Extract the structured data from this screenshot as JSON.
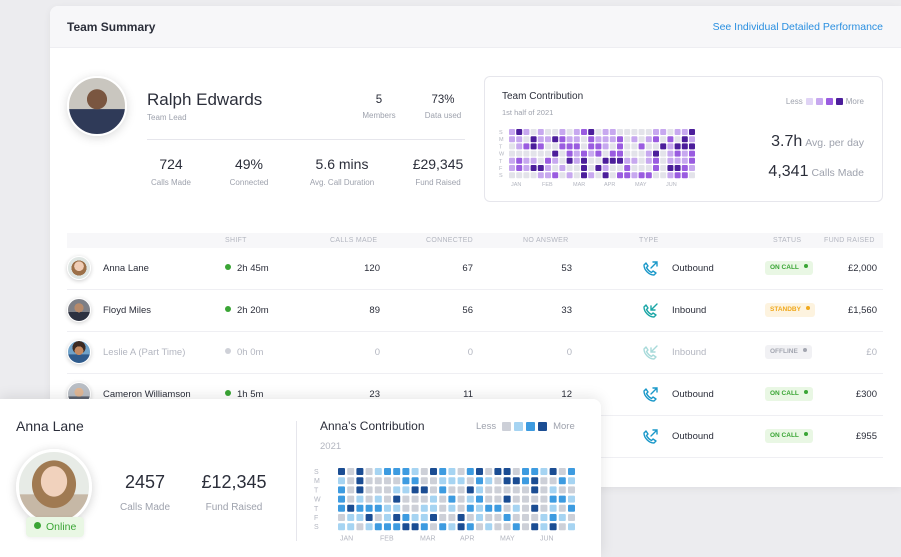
{
  "panel": {
    "title": "Team Summary",
    "link": "See Individual Detailed Performance"
  },
  "lead": {
    "name": "Ralph Edwards",
    "role": "Team Lead",
    "members_value": "5",
    "members_label": "Members",
    "data_value": "73%",
    "data_label": "Data used",
    "calls_value": "724",
    "calls_label": "Calls Made",
    "connected_value": "49%",
    "connected_label": "Connected",
    "duration_value": "5.6 mins",
    "duration_label": "Avg. Call Duration",
    "fund_value": "£29,345",
    "fund_label": "Fund Raised"
  },
  "team_contribution": {
    "title": "Team Contribution",
    "subtitle": "1st half of 2021",
    "legend_less": "Less",
    "legend_more": "More",
    "legend_colors": [
      "#e0d4f5",
      "#c7a8ef",
      "#9a5ce0",
      "#4c1e9b"
    ],
    "day_labels": [
      "S",
      "M",
      "T",
      "W",
      "T",
      "F",
      "S"
    ],
    "month_labels": [
      "JAN",
      "FEB",
      "MAR",
      "APR",
      "MAY",
      "JUN"
    ],
    "avg_value": "3.7h",
    "avg_label": "Avg. per day",
    "calls_value": "4,341",
    "calls_label": "Calls Made"
  },
  "table": {
    "headers": {
      "shift": "SHIFT",
      "calls_made": "CALLS MADE",
      "connected": "CONNECTED",
      "no_answer": "NO ANSWER",
      "type": "TYPE",
      "status": "STATUS",
      "fund_raised": "FUND RAISED"
    },
    "rows": [
      {
        "name": "Anna Lane",
        "shift": "2h 45m",
        "calls": "120",
        "connected": "67",
        "no_answer": "53",
        "type": "Outbound",
        "status": "ON CALL",
        "fund": "£2,000"
      },
      {
        "name": "Floyd Miles",
        "shift": "2h 20m",
        "calls": "89",
        "connected": "56",
        "no_answer": "33",
        "type": "Inbound",
        "status": "STANDBY",
        "fund": "£1,560"
      },
      {
        "name": "Leslie A (Part Time)",
        "shift": "0h 0m",
        "calls": "0",
        "connected": "0",
        "no_answer": "0",
        "type": "Inbound",
        "status": "OFFLINE",
        "fund": "£0"
      },
      {
        "name": "Cameron Williamson",
        "shift": "1h 5m",
        "calls": "23",
        "connected": "11",
        "no_answer": "12",
        "type": "Outbound",
        "status": "ON CALL",
        "fund": "£300"
      },
      {
        "name": "",
        "shift": "",
        "calls": "",
        "connected": "",
        "no_answer": "",
        "type": "Outbound",
        "status": "ON CALL",
        "fund": "£955"
      }
    ]
  },
  "card": {
    "name": "Anna Lane",
    "online_label": "Online",
    "calls_value": "2457",
    "calls_label": "Calls Made",
    "fund_value": "£12,345",
    "fund_label": "Fund Raised",
    "contrib_title": "Anna’s Contribution",
    "contrib_year": "2021",
    "legend_less": "Less",
    "legend_more": "More",
    "legend_colors": [
      "#cdd0d8",
      "#a6d4f2",
      "#3d9be0",
      "#1b4d93"
    ],
    "day_labels": [
      "S",
      "M",
      "T",
      "W",
      "T",
      "F",
      "S"
    ],
    "month_labels": [
      "JAN",
      "FEB",
      "MAR",
      "APR",
      "MAY",
      "JUN"
    ]
  },
  "colors": {
    "accent_blue": "#2a8fe0",
    "online_green": "#3aa535",
    "standby_orange": "#f0a81c",
    "offline_gray": "#b3b6c0",
    "call_icon_teal": "#1aa6a6"
  }
}
